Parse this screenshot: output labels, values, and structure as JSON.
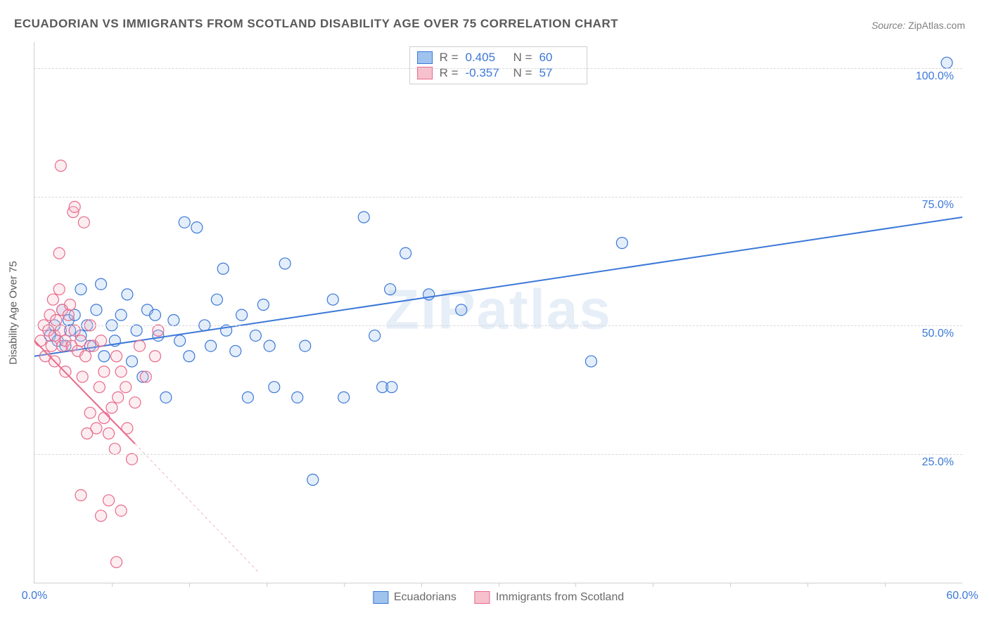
{
  "title": "ECUADORIAN VS IMMIGRANTS FROM SCOTLAND DISABILITY AGE OVER 75 CORRELATION CHART",
  "source": {
    "label": "Source: ",
    "value": "ZipAtlas.com"
  },
  "watermark": "ZIPatlas",
  "y_axis_title": "Disability Age Over 75",
  "chart": {
    "type": "scatter",
    "background_color": "#ffffff",
    "grid_color": "#d8d8d8",
    "axis_color": "#cfcfcf",
    "tick_label_color": "#3b78d8",
    "tick_label_fontsize": 16,
    "xlim": [
      0,
      60
    ],
    "ylim": [
      0,
      105
    ],
    "x_ticks": [
      {
        "value": 0,
        "label": "0.0%"
      },
      {
        "value": 60,
        "label": "60.0%"
      }
    ],
    "x_minor_ticks": [
      5,
      10,
      15,
      20,
      25,
      30,
      35,
      40,
      45,
      50,
      55
    ],
    "y_ticks": [
      {
        "value": 25,
        "label": "25.0%"
      },
      {
        "value": 50,
        "label": "50.0%"
      },
      {
        "value": 75,
        "label": "75.0%"
      },
      {
        "value": 100,
        "label": "100.0%"
      }
    ],
    "marker_radius": 8,
    "marker_stroke_width": 1.2,
    "marker_fill_opacity": 0.28,
    "trend_line_width": 2,
    "series": [
      {
        "name": "Ecuadorians",
        "color_fill": "#9fc3ed",
        "color_stroke": "#3b78d8",
        "R": "0.405",
        "N": "60",
        "trend": {
          "x1": 0,
          "y1": 44,
          "x2": 60,
          "y2": 71,
          "dashed_extension": false
        },
        "points": [
          [
            1.0,
            48
          ],
          [
            1.3,
            50
          ],
          [
            1.5,
            47
          ],
          [
            1.8,
            53
          ],
          [
            2.0,
            46
          ],
          [
            2.2,
            51
          ],
          [
            2.3,
            49
          ],
          [
            2.6,
            52
          ],
          [
            3.0,
            48
          ],
          [
            3.0,
            57
          ],
          [
            3.4,
            50
          ],
          [
            3.6,
            46
          ],
          [
            4.0,
            53
          ],
          [
            4.3,
            58
          ],
          [
            4.5,
            44
          ],
          [
            5.0,
            50
          ],
          [
            5.2,
            47
          ],
          [
            5.6,
            52
          ],
          [
            6.0,
            56
          ],
          [
            6.3,
            43
          ],
          [
            6.6,
            49
          ],
          [
            7.0,
            40
          ],
          [
            7.3,
            53
          ],
          [
            7.8,
            52
          ],
          [
            8.0,
            48
          ],
          [
            8.5,
            36
          ],
          [
            9.0,
            51
          ],
          [
            9.4,
            47
          ],
          [
            9.7,
            70
          ],
          [
            10.0,
            44
          ],
          [
            10.5,
            69
          ],
          [
            11.0,
            50
          ],
          [
            11.4,
            46
          ],
          [
            11.8,
            55
          ],
          [
            12.2,
            61
          ],
          [
            12.4,
            49
          ],
          [
            13.0,
            45
          ],
          [
            13.4,
            52
          ],
          [
            13.8,
            36
          ],
          [
            14.3,
            48
          ],
          [
            14.8,
            54
          ],
          [
            15.2,
            46
          ],
          [
            15.5,
            38
          ],
          [
            16.2,
            62
          ],
          [
            17.0,
            36
          ],
          [
            17.5,
            46
          ],
          [
            18.0,
            20
          ],
          [
            19.3,
            55
          ],
          [
            20.0,
            36
          ],
          [
            21.3,
            71
          ],
          [
            22.0,
            48
          ],
          [
            22.5,
            38
          ],
          [
            23.0,
            57
          ],
          [
            23.1,
            38
          ],
          [
            24.0,
            64
          ],
          [
            25.5,
            56
          ],
          [
            27.6,
            53
          ],
          [
            36.0,
            43
          ],
          [
            38.0,
            66
          ],
          [
            59.0,
            101
          ]
        ]
      },
      {
        "name": "Immigrants from Scotland",
        "color_fill": "#f6c0cd",
        "color_stroke": "#e86a8a",
        "R": "-0.357",
        "N": "57",
        "trend": {
          "x1": 0,
          "y1": 47,
          "x2": 6.5,
          "y2": 27,
          "dashed_extension": true,
          "dash_x2": 14.5,
          "dash_y2": 2
        },
        "points": [
          [
            0.4,
            47
          ],
          [
            0.6,
            50
          ],
          [
            0.7,
            44
          ],
          [
            0.9,
            49
          ],
          [
            1.0,
            52
          ],
          [
            1.1,
            46
          ],
          [
            1.2,
            55
          ],
          [
            1.3,
            48
          ],
          [
            1.4,
            51
          ],
          [
            1.3,
            43
          ],
          [
            1.6,
            57
          ],
          [
            1.6,
            64
          ],
          [
            1.7,
            49
          ],
          [
            1.8,
            46
          ],
          [
            1.8,
            53
          ],
          [
            2.0,
            47
          ],
          [
            2.0,
            41
          ],
          [
            2.2,
            52
          ],
          [
            2.3,
            54
          ],
          [
            2.4,
            46
          ],
          [
            2.6,
            49
          ],
          [
            1.7,
            81
          ],
          [
            2.8,
            45
          ],
          [
            2.5,
            72
          ],
          [
            3.0,
            47
          ],
          [
            3.1,
            40
          ],
          [
            2.6,
            73
          ],
          [
            3.4,
            29
          ],
          [
            3.3,
            44
          ],
          [
            3.6,
            50
          ],
          [
            3.6,
            33
          ],
          [
            3.8,
            46
          ],
          [
            4.0,
            30
          ],
          [
            3.2,
            70
          ],
          [
            4.2,
            38
          ],
          [
            4.3,
            47
          ],
          [
            4.5,
            41
          ],
          [
            4.5,
            32
          ],
          [
            4.8,
            29
          ],
          [
            5.0,
            34
          ],
          [
            5.3,
            44
          ],
          [
            5.4,
            36
          ],
          [
            5.2,
            26
          ],
          [
            5.6,
            41
          ],
          [
            5.6,
            14
          ],
          [
            5.9,
            38
          ],
          [
            3.0,
            17
          ],
          [
            6.0,
            30
          ],
          [
            6.3,
            24
          ],
          [
            6.5,
            35
          ],
          [
            4.3,
            13
          ],
          [
            6.8,
            46
          ],
          [
            4.8,
            16
          ],
          [
            5.3,
            4
          ],
          [
            7.2,
            40
          ],
          [
            7.8,
            44
          ],
          [
            8.0,
            49
          ]
        ]
      }
    ]
  },
  "stat_box_labels": {
    "r": "R =",
    "n": "N ="
  },
  "bottom_legend": {
    "series1_label": "Ecuadorians",
    "series2_label": "Immigrants from Scotland"
  }
}
